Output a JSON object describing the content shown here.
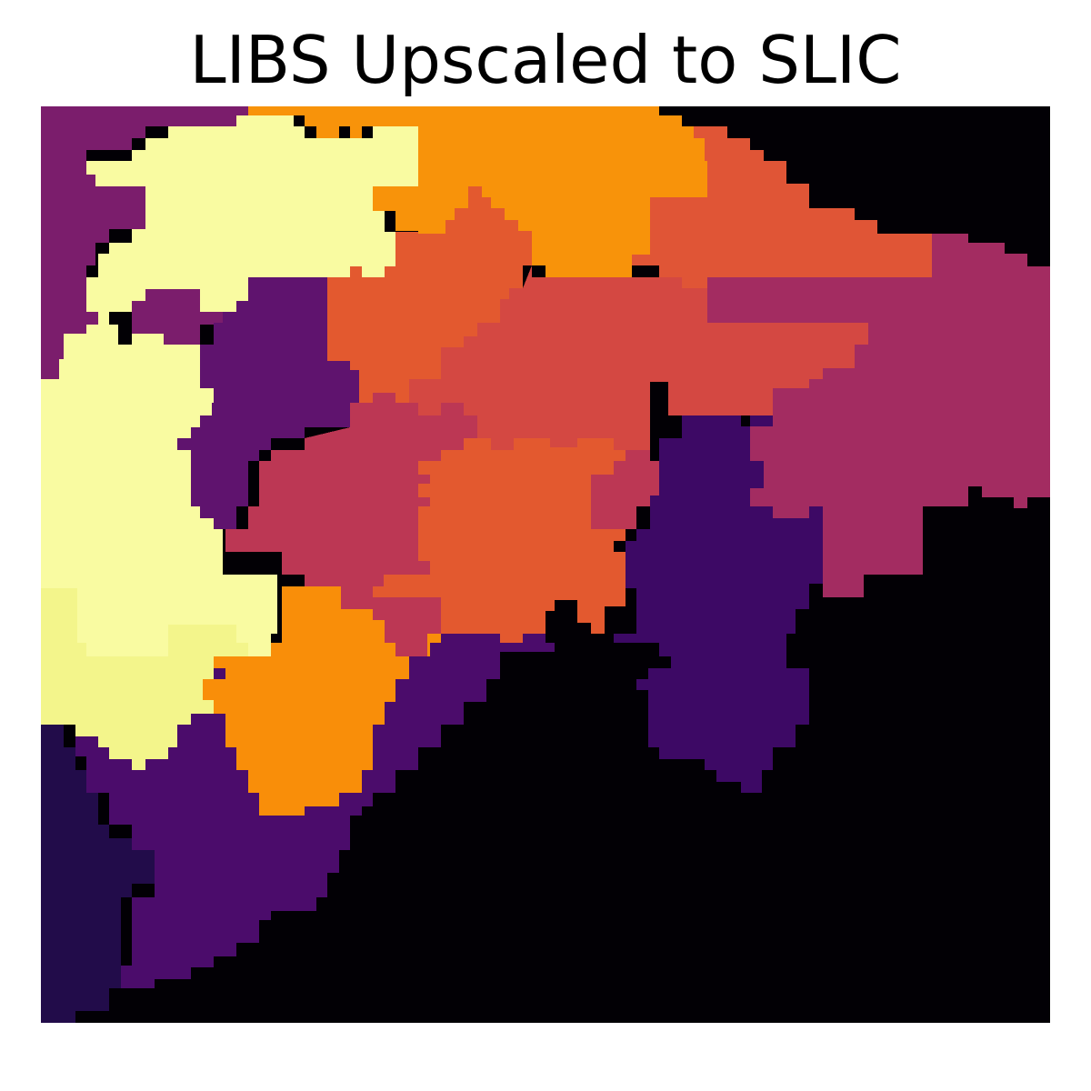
{
  "figure": {
    "title": "LIBS Upscaled to SLIC",
    "colormap": "inferno",
    "palette": {
      "black": "#020005",
      "deep_black": "#000004",
      "indigo": "#220c4a",
      "dark_purple": "#3d0965",
      "purple": "#4b0c6b",
      "violet": "#5f136e",
      "plum": "#7b1d6c",
      "magenta": "#a32c61",
      "crimson": "#bc3754",
      "red": "#d44842",
      "red_orange": "#e05536",
      "orange": "#e3592f",
      "dark_orange": "#f98e09",
      "amber": "#f8930a",
      "light_yellow": "#f9fba1",
      "pale_yellow": "#f3f58b"
    }
  }
}
